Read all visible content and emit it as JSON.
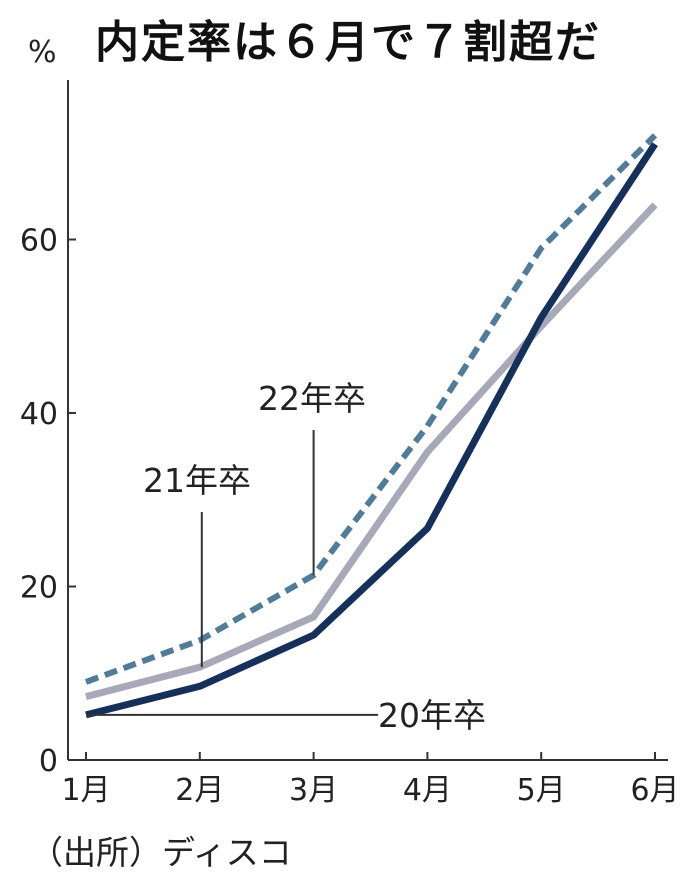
{
  "chart_data": {
    "type": "line",
    "title": "内定率は６月で７割超だ",
    "ylabel": "%",
    "xlabel": "",
    "categories": [
      "1月",
      "2月",
      "3月",
      "4月",
      "5月",
      "6月"
    ],
    "ylim": [
      0,
      80
    ],
    "yticks": [
      0,
      20,
      40,
      60
    ],
    "grid": false,
    "series": [
      {
        "name": "20年卒",
        "values": [
          5.2,
          8.5,
          14.4,
          26.7,
          51.0,
          71.0
        ],
        "color": "#16305c",
        "style": "solid"
      },
      {
        "name": "21年卒",
        "values": [
          7.3,
          10.7,
          16.5,
          35.5,
          50.0,
          64.0
        ],
        "color": "#a7a8b8",
        "style": "solid"
      },
      {
        "name": "22年卒",
        "values": [
          9.0,
          13.8,
          21.3,
          38.5,
          59.0,
          72.0
        ],
        "color": "#4f7c9a",
        "style": "dashed"
      }
    ],
    "source": "（出所）ディスコ"
  }
}
